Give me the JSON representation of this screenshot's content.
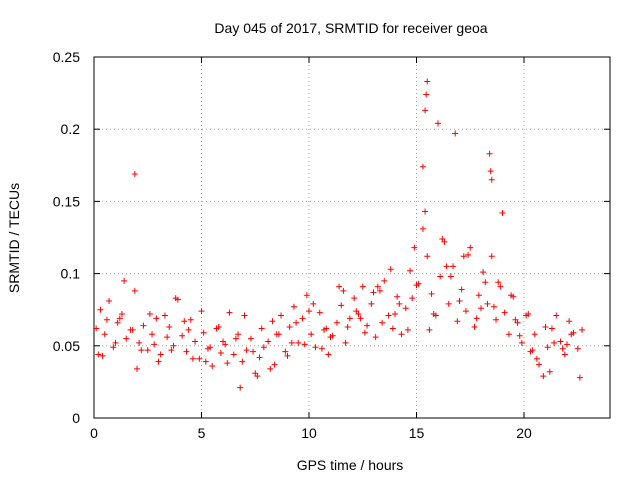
{
  "chart_data": {
    "type": "scatter",
    "title": "Day 045 of 2017, SRMTID for receiver geoa",
    "xlabel": "GPS time / hours",
    "ylabel": "SRMTID / TECUs",
    "xlim": [
      0,
      24
    ],
    "ylim": [
      0,
      0.25
    ],
    "xticks": [
      0,
      5,
      10,
      15,
      20
    ],
    "xtick_labels": [
      "0",
      "5",
      "10",
      "15",
      "20"
    ],
    "yticks": [
      0,
      0.05,
      0.1,
      0.15,
      0.2,
      0.25
    ],
    "ytick_labels": [
      "0",
      "0.05",
      "0.1",
      "0.15",
      "0.2",
      "0.25"
    ],
    "grid": true,
    "marker": "+",
    "series": [
      {
        "name": "SRMTID",
        "color": "#ff0000",
        "x": [
          0.1,
          0.3,
          0.5,
          0.7,
          0.9,
          1.1,
          1.3,
          1.5,
          1.7,
          1.9,
          2.1,
          2.3,
          2.5,
          2.7,
          2.9,
          3.1,
          3.3,
          3.5,
          3.7,
          3.9,
          4.1,
          4.3,
          4.5,
          4.7,
          4.9,
          5.1,
          5.3,
          5.5,
          5.7,
          5.9,
          6.1,
          6.3,
          6.5,
          6.7,
          6.9,
          7.1,
          7.3,
          7.5,
          7.7,
          7.9,
          8.1,
          8.3,
          8.5,
          8.7,
          8.9,
          9.1,
          9.3,
          9.5,
          9.7,
          9.9,
          10.1,
          10.3,
          10.5,
          10.7,
          10.9,
          11.1,
          11.3,
          11.5,
          11.7,
          11.9,
          12.1,
          12.3,
          12.5,
          12.7,
          12.9,
          13.1,
          13.3,
          13.5,
          13.7,
          13.9,
          14.1,
          14.3,
          14.5,
          14.7,
          14.9,
          15.1,
          15.3,
          15.5,
          15.7,
          15.9,
          16.1,
          16.3,
          16.5,
          16.7,
          16.9,
          17.1,
          17.3,
          17.5,
          17.7,
          17.9,
          18.1,
          18.3,
          18.5,
          18.7,
          18.9,
          19.1,
          19.3,
          19.5,
          19.7,
          19.9,
          20.1,
          20.3,
          20.5,
          20.7,
          20.9,
          21.1,
          21.3,
          21.5,
          21.7,
          21.9,
          22.1,
          22.3,
          22.5,
          22.7,
          0.2,
          0.6,
          1.0,
          1.4,
          1.8,
          2.2,
          2.6,
          3.0,
          3.4,
          3.8,
          4.2,
          4.6,
          5.0,
          5.4,
          5.8,
          6.2,
          6.6,
          7.0,
          7.4,
          7.8,
          8.2,
          8.6,
          9.0,
          9.4,
          9.8,
          10.2,
          10.6,
          11.0,
          11.4,
          11.8,
          12.2,
          12.6,
          13.0,
          13.4,
          13.8,
          14.2,
          14.6,
          15.0,
          15.4,
          15.8,
          16.2,
          16.6,
          17.0,
          17.4,
          17.8,
          18.2,
          18.6,
          19.0,
          19.4,
          19.8,
          20.2,
          20.6,
          21.0,
          21.4,
          21.8,
          22.2,
          22.6,
          0.4,
          1.2,
          2.0,
          2.8,
          3.6,
          4.4,
          5.2,
          6.0,
          6.8,
          7.6,
          8.4,
          9.2,
          10.0,
          10.8,
          11.6,
          12.4,
          13.2,
          14.0,
          14.8,
          15.6,
          16.4,
          17.2,
          18.0,
          18.8,
          19.6,
          20.4,
          21.2,
          22.0,
          1.9,
          15.4,
          15.45,
          15.5,
          16.8,
          18.4,
          18.45,
          18.5,
          15.3,
          16.0
        ],
        "y": [
          0.062,
          0.075,
          0.058,
          0.081,
          0.049,
          0.066,
          0.072,
          0.055,
          0.061,
          0.088,
          0.052,
          0.064,
          0.047,
          0.058,
          0.069,
          0.044,
          0.071,
          0.063,
          0.05,
          0.082,
          0.057,
          0.046,
          0.068,
          0.053,
          0.041,
          0.059,
          0.048,
          0.036,
          0.062,
          0.045,
          0.051,
          0.073,
          0.044,
          0.058,
          0.039,
          0.047,
          0.055,
          0.031,
          0.042,
          0.049,
          0.053,
          0.067,
          0.058,
          0.071,
          0.046,
          0.063,
          0.077,
          0.052,
          0.069,
          0.085,
          0.058,
          0.049,
          0.073,
          0.061,
          0.044,
          0.057,
          0.066,
          0.078,
          0.052,
          0.069,
          0.083,
          0.072,
          0.091,
          0.064,
          0.079,
          0.056,
          0.088,
          0.095,
          0.071,
          0.062,
          0.084,
          0.058,
          0.076,
          0.102,
          0.118,
          0.093,
          0.131,
          0.112,
          0.086,
          0.071,
          0.098,
          0.122,
          0.079,
          0.105,
          0.067,
          0.089,
          0.074,
          0.118,
          0.063,
          0.085,
          0.101,
          0.079,
          0.112,
          0.068,
          0.091,
          0.073,
          0.058,
          0.084,
          0.066,
          0.052,
          0.071,
          0.046,
          0.058,
          0.037,
          0.029,
          0.049,
          0.062,
          0.071,
          0.053,
          0.044,
          0.067,
          0.059,
          0.048,
          0.061,
          0.044,
          0.068,
          0.052,
          0.095,
          0.061,
          0.047,
          0.072,
          0.039,
          0.056,
          0.083,
          0.067,
          0.041,
          0.074,
          0.049,
          0.063,
          0.038,
          0.055,
          0.071,
          0.046,
          0.062,
          0.034,
          0.058,
          0.043,
          0.066,
          0.051,
          0.079,
          0.048,
          0.056,
          0.091,
          0.063,
          0.074,
          0.059,
          0.087,
          0.066,
          0.103,
          0.079,
          0.061,
          0.092,
          0.143,
          0.072,
          0.124,
          0.098,
          0.081,
          0.113,
          0.069,
          0.094,
          0.077,
          0.142,
          0.085,
          0.057,
          0.072,
          0.041,
          0.063,
          0.052,
          0.048,
          0.058,
          0.028,
          0.043,
          0.069,
          0.034,
          0.051,
          0.047,
          0.061,
          0.039,
          0.053,
          0.021,
          0.029,
          0.037,
          0.052,
          0.074,
          0.062,
          0.088,
          0.069,
          0.091,
          0.072,
          0.083,
          0.061,
          0.105,
          0.112,
          0.076,
          0.094,
          0.068,
          0.047,
          0.032,
          0.051,
          0.169,
          0.213,
          0.224,
          0.233,
          0.197,
          0.183,
          0.171,
          0.165,
          0.174,
          0.204
        ]
      }
    ]
  }
}
